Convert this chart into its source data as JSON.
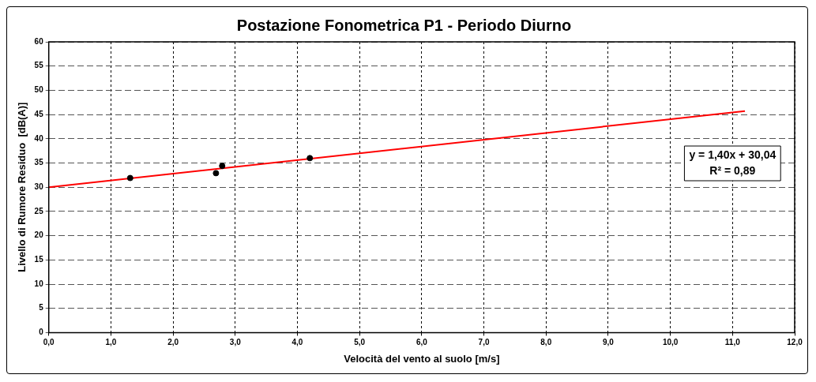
{
  "chart_data": {
    "type": "scatter",
    "title": "Postazione Fonometrica P1 - Periodo Diurno",
    "xlabel": "Velocità del vento al suolo [m/s]",
    "ylabel": "Livello di Rumore Residuo  [dB(A)]",
    "xlim": [
      0,
      12
    ],
    "ylim": [
      0,
      60
    ],
    "xticks": [
      {
        "value": 0,
        "label": "0,0"
      },
      {
        "value": 1,
        "label": "1,0"
      },
      {
        "value": 2,
        "label": "2,0"
      },
      {
        "value": 3,
        "label": "3,0"
      },
      {
        "value": 4,
        "label": "4,0"
      },
      {
        "value": 5,
        "label": "5,0"
      },
      {
        "value": 6,
        "label": "6,0"
      },
      {
        "value": 7,
        "label": "7,0"
      },
      {
        "value": 8,
        "label": "8,0"
      },
      {
        "value": 9,
        "label": "9,0"
      },
      {
        "value": 10,
        "label": "10,0"
      },
      {
        "value": 11,
        "label": "11,0"
      },
      {
        "value": 12,
        "label": "12,0"
      }
    ],
    "yticks": [
      0,
      5,
      10,
      15,
      20,
      25,
      30,
      35,
      40,
      45,
      50,
      55,
      60
    ],
    "series": [
      {
        "color": "#000000",
        "x": [
          1.31,
          2.69,
          2.79,
          4.2
        ],
        "values": [
          31.9,
          32.9,
          34.4,
          36.0
        ],
        "marker": "circle"
      },
      {
        "type": "line",
        "color": "#ff0000",
        "x": [
          0,
          11.2
        ],
        "values": [
          30.0,
          45.7
        ],
        "marker": "none",
        "line_style": "solid"
      }
    ],
    "annotations": [
      "y = 1,40x + 30,04",
      "R² = 0,89"
    ],
    "grid": true,
    "legend": false
  }
}
